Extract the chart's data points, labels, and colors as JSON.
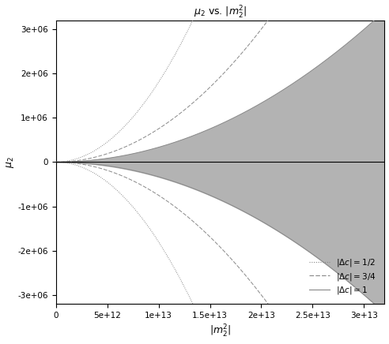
{
  "title": "$\\mu_2$ vs. $|m_2^2|$",
  "xlabel": "$|m_2^2|$",
  "ylabel": "$\\mu_2$",
  "xlim": [
    0,
    32000000000000.0
  ],
  "ylim": [
    -3200000.0,
    3200000.0
  ],
  "x_max": 32000000000000.0,
  "shade_color": "#b3b3b3",
  "background_color": "#ffffff",
  "coeff_one": 3.33e-21,
  "coeff_three_quarter": 7.5e-21,
  "coeff_half": 1.8e-20,
  "xticks": [
    0,
    5000000000000.0,
    10000000000000.0,
    15000000000000.0,
    20000000000000.0,
    25000000000000.0,
    30000000000000.0
  ],
  "yticks": [
    -3000000.0,
    -2000000.0,
    -1000000.0,
    0,
    1000000.0,
    2000000.0,
    3000000.0
  ],
  "xtick_labels": [
    "0",
    "5e+12",
    "1e+13",
    "1.5e+13",
    "2e+13",
    "2.5e+13",
    "3e+13"
  ],
  "ytick_labels": [
    "-3e+06",
    "-2e+06",
    "-1e+06",
    "0",
    "1e+06",
    "2e+06",
    "3e+06"
  ]
}
